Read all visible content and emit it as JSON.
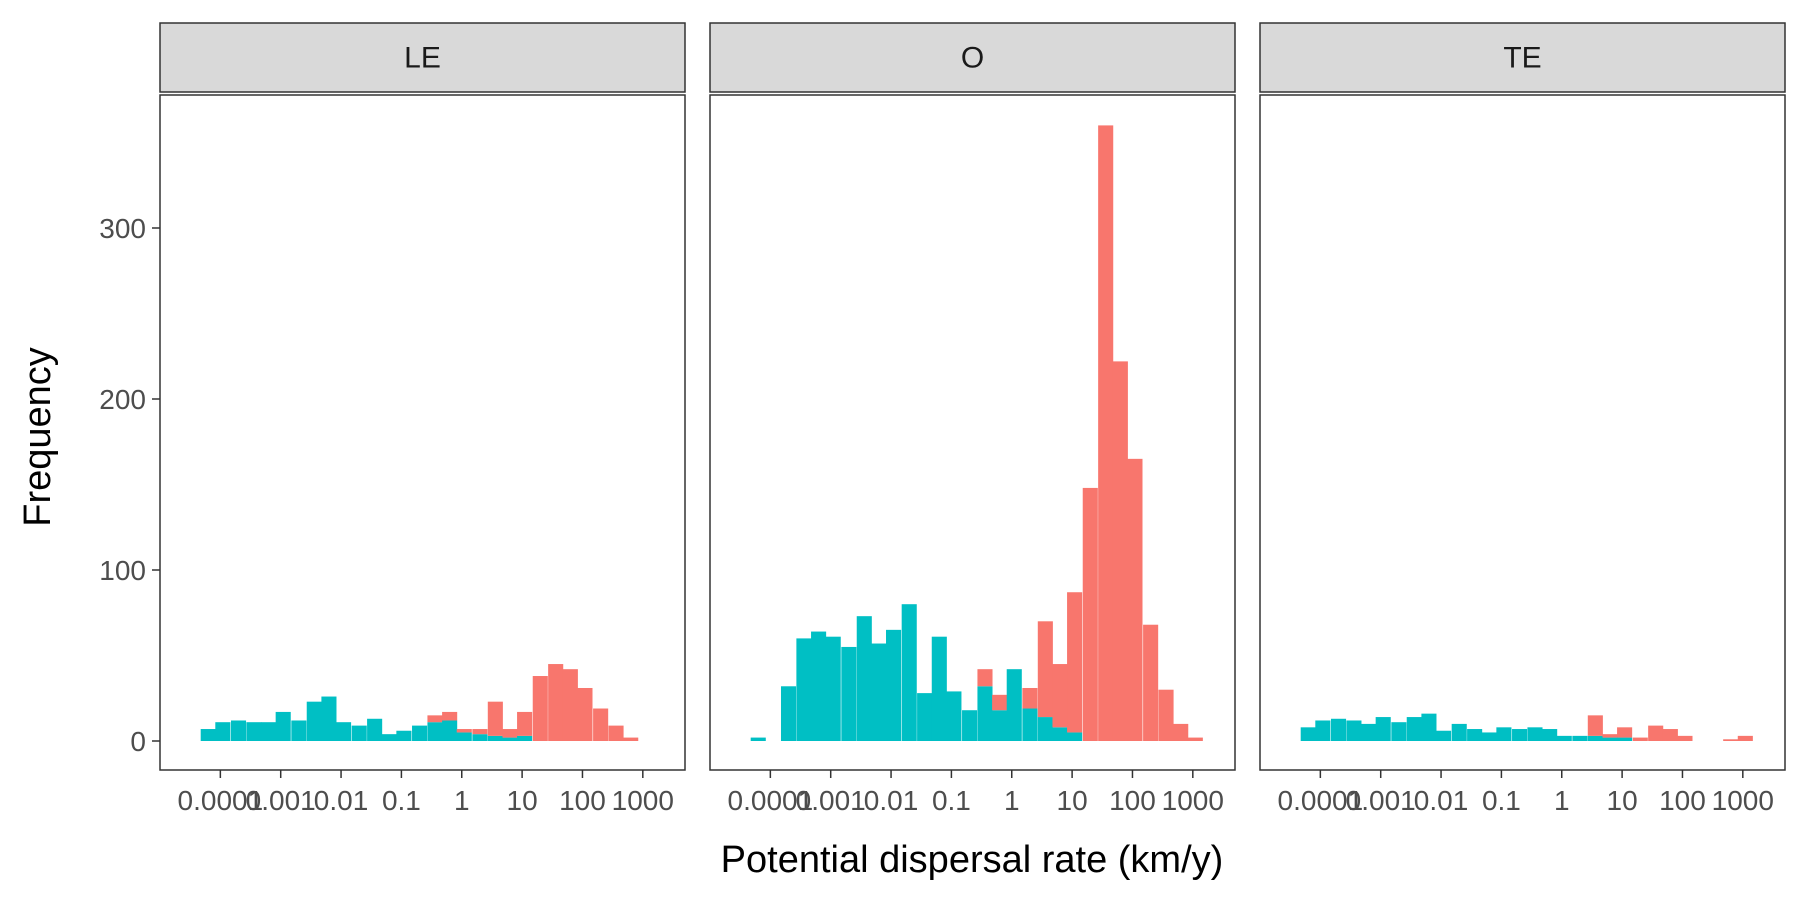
{
  "chart_data": {
    "type": "bar",
    "xlabel": "Potential dispersal rate (km/y)",
    "ylabel": "Frequency",
    "x_scale": "log10",
    "x_ticks": [
      {
        "value": 0.0001,
        "label": "0.0001"
      },
      {
        "value": 0.001,
        "label": "0.001"
      },
      {
        "value": 0.01,
        "label": "0.01"
      },
      {
        "value": 0.1,
        "label": "0.1"
      },
      {
        "value": 1,
        "label": "1"
      },
      {
        "value": 10,
        "label": "10"
      },
      {
        "value": 100,
        "label": "100"
      },
      {
        "value": 1000,
        "label": "1000"
      }
    ],
    "y_ticks": [
      {
        "value": 0,
        "label": "0"
      },
      {
        "value": 100,
        "label": "100"
      },
      {
        "value": 200,
        "label": "200"
      },
      {
        "value": 300,
        "label": "300"
      }
    ],
    "ylim": [
      -17,
      378
    ],
    "xlim": [
      1e-05,
      5000
    ],
    "colors": {
      "series_1": "#F8766D",
      "series_2": "#00BFC4"
    },
    "bin_width_log10": 0.25,
    "panels": [
      {
        "name": "LE",
        "bin_centers": [
          6.3e-05,
          0.00011,
          0.0002,
          0.00036,
          0.00063,
          0.0011,
          0.002,
          0.0036,
          0.0063,
          0.011,
          0.02,
          0.036,
          0.063,
          0.11,
          0.2,
          0.36,
          0.63,
          1.1,
          2.0,
          3.6,
          6.3,
          11,
          20,
          36,
          63,
          110,
          200,
          360,
          630,
          1100
        ],
        "series": [
          {
            "name": "",
            "color": "#F8766D",
            "values": [
              0,
              0,
              0,
              0,
              0,
              0,
              0,
              0,
              0,
              0,
              0,
              0,
              0,
              0,
              0,
              4,
              5,
              2,
              3,
              20,
              5,
              14,
              38,
              45,
              42,
              31,
              19,
              9,
              2,
              0
            ]
          },
          {
            "name": "",
            "color": "#00BFC4",
            "values": [
              7,
              11,
              12,
              11,
              11,
              17,
              12,
              23,
              26,
              11,
              9,
              13,
              4,
              6,
              9,
              11,
              12,
              5,
              4,
              3,
              2,
              3,
              0,
              0,
              0,
              0,
              0,
              0,
              0,
              0
            ]
          }
        ]
      },
      {
        "name": "O",
        "bin_centers": [
          6.3e-05,
          0.00011,
          0.0002,
          0.00036,
          0.00063,
          0.0011,
          0.002,
          0.0036,
          0.0063,
          0.011,
          0.02,
          0.036,
          0.063,
          0.11,
          0.2,
          0.36,
          0.63,
          1.1,
          2.0,
          3.6,
          6.3,
          11,
          20,
          36,
          63,
          110,
          200,
          360,
          630,
          1100
        ],
        "series": [
          {
            "name": "",
            "color": "#F8766D",
            "values": [
              0,
              0,
              0,
              0,
              0,
              0,
              0,
              0,
              0,
              0,
              0,
              0,
              0,
              0,
              0,
              10,
              9,
              0,
              12,
              56,
              37,
              82,
              148,
              360,
              222,
              165,
              68,
              30,
              10,
              2
            ]
          },
          {
            "name": "",
            "color": "#00BFC4",
            "values": [
              2,
              0,
              32,
              60,
              64,
              61,
              55,
              73,
              57,
              65,
              80,
              28,
              61,
              29,
              18,
              32,
              18,
              42,
              19,
              14,
              8,
              5,
              0,
              0,
              0,
              0,
              0,
              0,
              0,
              0
            ]
          }
        ]
      },
      {
        "name": "TE",
        "bin_centers": [
          6.3e-05,
          0.00011,
          0.0002,
          0.00036,
          0.00063,
          0.0011,
          0.002,
          0.0036,
          0.0063,
          0.011,
          0.02,
          0.036,
          0.063,
          0.11,
          0.2,
          0.36,
          0.63,
          1.1,
          2.0,
          3.6,
          6.3,
          11,
          20,
          36,
          63,
          110,
          200,
          360,
          630,
          1100
        ],
        "series": [
          {
            "name": "",
            "color": "#F8766D",
            "values": [
              0,
              0,
              0,
              0,
              0,
              0,
              0,
              0,
              0,
              0,
              0,
              0,
              0,
              0,
              0,
              0,
              0,
              0,
              0,
              12,
              2,
              6,
              2,
              9,
              7,
              3,
              0,
              0,
              1,
              3
            ]
          },
          {
            "name": "",
            "color": "#00BFC4",
            "values": [
              8,
              12,
              13,
              12,
              10,
              14,
              11,
              14,
              16,
              6,
              10,
              7,
              5,
              8,
              7,
              8,
              7,
              3,
              3,
              3,
              2,
              2,
              0,
              0,
              0,
              0,
              0,
              0,
              0,
              0
            ]
          }
        ]
      }
    ]
  }
}
